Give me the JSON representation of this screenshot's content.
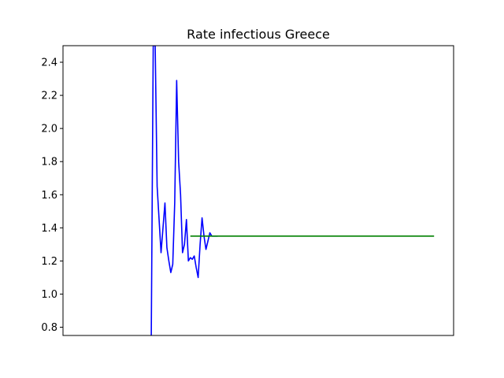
{
  "chart_data": {
    "type": "line",
    "title": "Rate infectious Greece",
    "xlabel": "",
    "ylabel": "",
    "ylim": [
      0.75,
      2.5
    ],
    "xlim": [
      0,
      100
    ],
    "y_ticks": [
      "0.8",
      "1.0",
      "1.2",
      "1.4",
      "1.6",
      "1.8",
      "2.0",
      "2.2",
      "2.4"
    ],
    "x_ticks_visible": false,
    "grid": false,
    "legend": "none",
    "series": [
      {
        "color": "#0000ff",
        "style": "solid",
        "x": [
          22.6,
          23.1,
          23.6,
          24.1,
          24.6,
          25.1,
          25.6,
          26.1,
          26.6,
          27.1,
          27.6,
          28.1,
          28.6,
          29.1,
          29.6,
          30.1,
          30.6,
          31.1,
          31.6,
          32.1,
          32.6,
          33.1,
          33.6,
          34.1,
          34.6,
          35.1,
          35.6,
          36.1,
          36.6,
          37.1,
          37.6,
          38.1,
          38.6,
          39.1,
          39.6
        ],
        "y": [
          0.75,
          2.5,
          2.5,
          1.65,
          1.45,
          1.25,
          1.4,
          1.55,
          1.28,
          1.2,
          1.13,
          1.18,
          1.55,
          2.29,
          1.8,
          1.6,
          1.25,
          1.3,
          1.45,
          1.2,
          1.22,
          1.21,
          1.23,
          1.16,
          1.1,
          1.3,
          1.46,
          1.35,
          1.27,
          1.32,
          1.37,
          1.35,
          1.35,
          1.35,
          1.35
        ]
      },
      {
        "color": "#008000",
        "style": "solid",
        "x": [
          32.6,
          95
        ],
        "y": [
          1.35,
          1.35
        ]
      }
    ]
  }
}
